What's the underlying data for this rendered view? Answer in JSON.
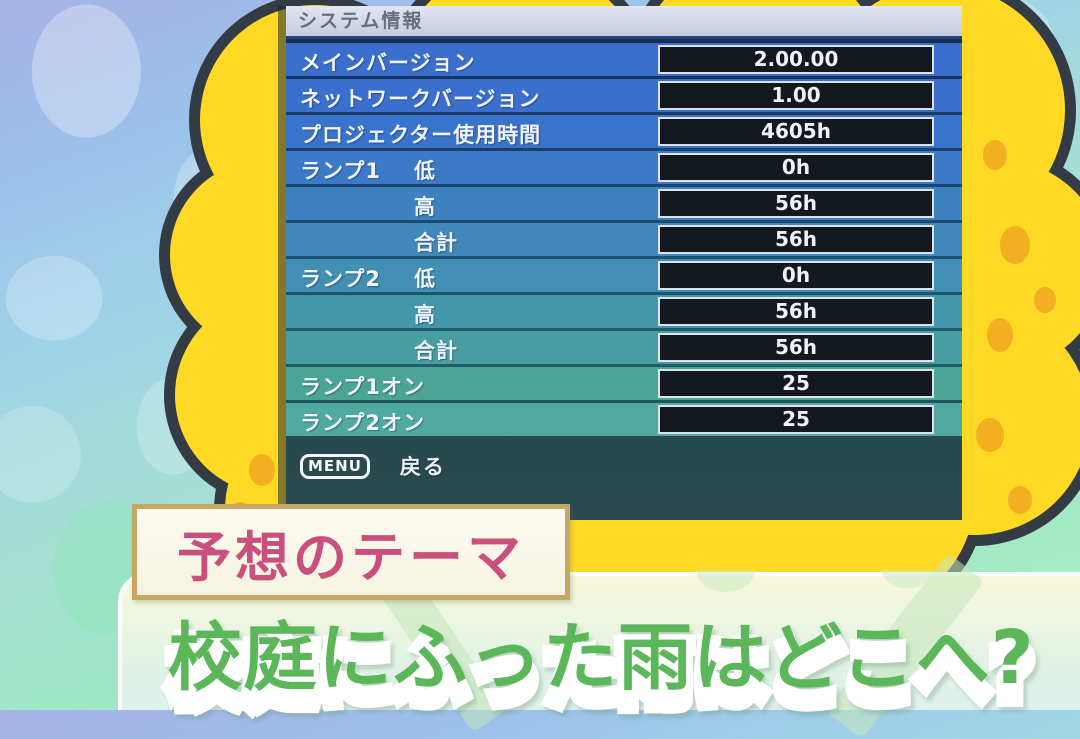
{
  "menu": {
    "title": "システム情報",
    "rows": [
      {
        "label": "メインバージョン",
        "sublabel": "",
        "value": "2.00.00"
      },
      {
        "label": "ネットワークバージョン",
        "sublabel": "",
        "value": "1.00"
      },
      {
        "label": "プロジェクター使用時間",
        "sublabel": "",
        "value": "4605h"
      },
      {
        "label": "ランプ1",
        "sublabel": "低",
        "value": "0h"
      },
      {
        "label": "",
        "sublabel": "高",
        "value": "56h"
      },
      {
        "label": "",
        "sublabel": "合計",
        "value": "56h"
      },
      {
        "label": "ランプ2",
        "sublabel": "低",
        "value": "0h"
      },
      {
        "label": "",
        "sublabel": "高",
        "value": "56h"
      },
      {
        "label": "",
        "sublabel": "合計",
        "value": "56h"
      },
      {
        "label": "ランプ1オン",
        "sublabel": "",
        "value": "25"
      },
      {
        "label": "ランプ2オン",
        "sublabel": "",
        "value": "25"
      }
    ],
    "footer": {
      "menu_badge": "MENU",
      "back_label": "戻る"
    }
  },
  "captions": {
    "theme_label": "予想のテーマ",
    "main_text": "校庭にふった雨はどこへ?"
  },
  "colors": {
    "osd_row_blue": "#3a6fce",
    "osd_row_teal": "#50aaa2",
    "osd_value_bg": "#14181f",
    "osd_title_bg": "#ccd2e4",
    "cloud_yellow": "#ffd924",
    "cloud_outline": "#333c44",
    "cloud_dots_orange": "#f0a820",
    "theme_pink": "#c94f7c",
    "theme_border_tan": "#c7a763",
    "caption_green": "#5cb65a"
  }
}
